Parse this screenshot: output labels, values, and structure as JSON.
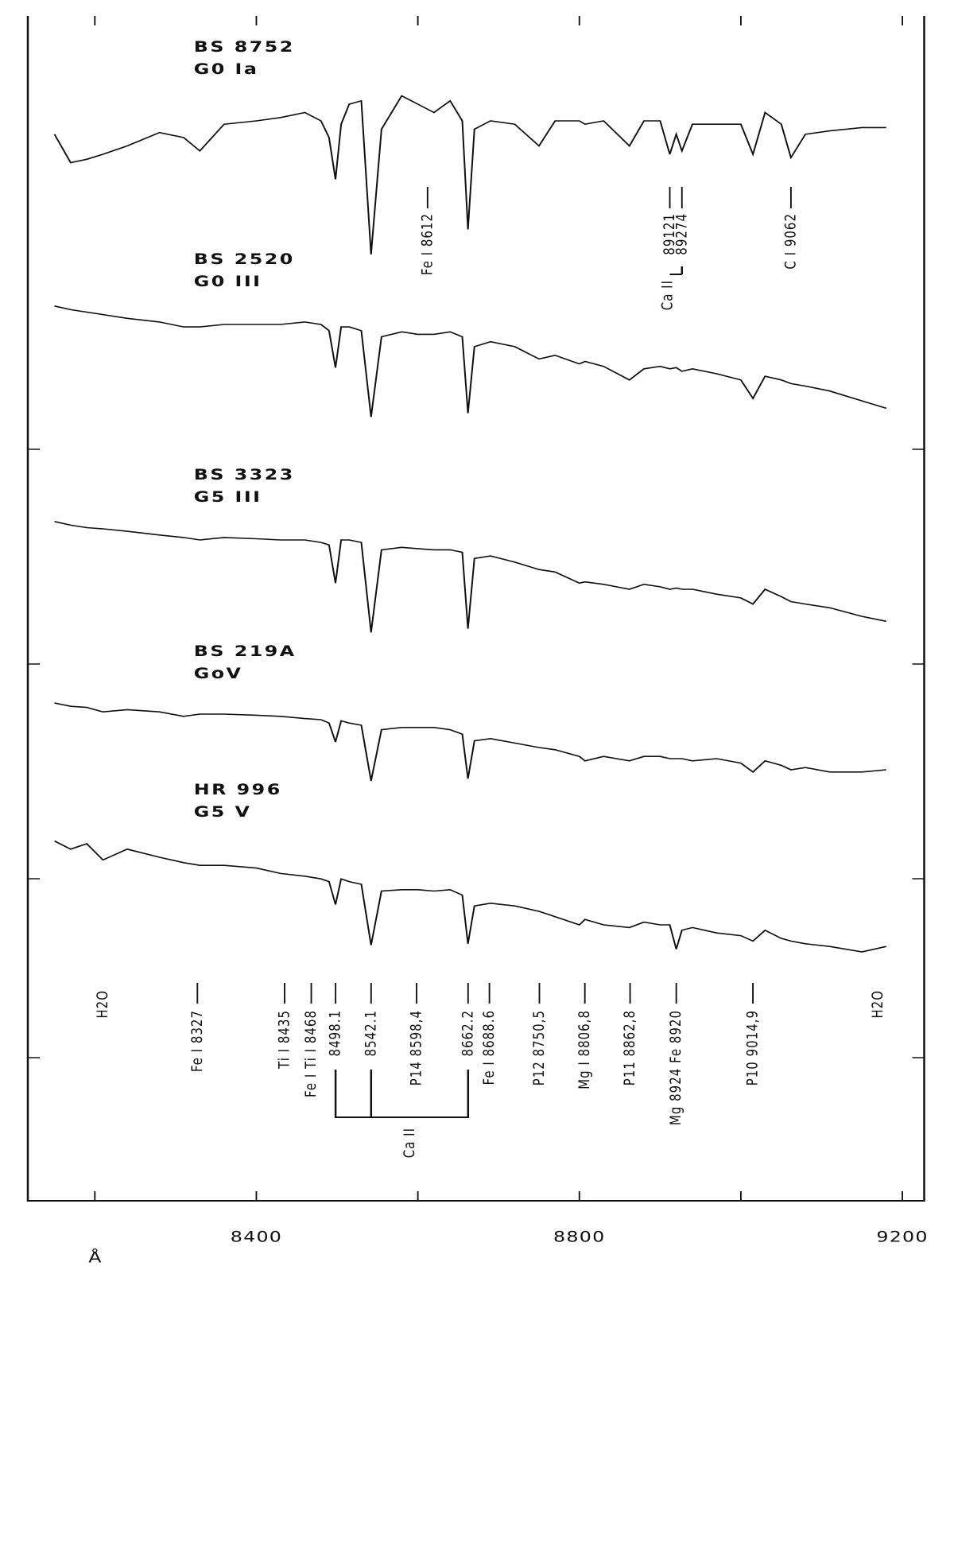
{
  "chart_data": {
    "type": "line",
    "x_label": "Å",
    "xlim": [
      8117,
      9227
    ],
    "xticks": [
      8400,
      8800,
      9200
    ],
    "xminor_ticks": [
      8200,
      8600,
      9000
    ],
    "x": [
      8150,
      8170,
      8190,
      8210,
      8240,
      8280,
      8310,
      8330,
      8360,
      8400,
      8430,
      8460,
      8480,
      8490,
      8498,
      8505,
      8515,
      8530,
      8542,
      8555,
      8580,
      8600,
      8620,
      8640,
      8655,
      8662,
      8670,
      8690,
      8720,
      8750,
      8770,
      8800,
      8807,
      8830,
      8862,
      8880,
      8900,
      8912,
      8920,
      8927,
      8940,
      8970,
      9000,
      9015,
      9030,
      9050,
      9062,
      9080,
      9110,
      9150,
      9180
    ],
    "series": [
      {
        "name": "BS 8752",
        "spectral_type": "G0 Ia",
        "color": "#111111",
        "values": [
          72,
          55,
          57,
          60,
          65,
          73,
          70,
          62,
          78,
          80,
          82,
          85,
          80,
          70,
          45,
          78,
          90,
          92,
          0,
          75,
          95,
          90,
          85,
          92,
          80,
          15,
          75,
          80,
          78,
          65,
          80,
          80,
          78,
          80,
          65,
          80,
          80,
          60,
          72,
          62,
          78,
          78,
          78,
          60,
          85,
          78,
          58,
          72,
          74,
          76,
          76
        ]
      },
      {
        "name": "BS 2520",
        "spectral_type": "G0 III",
        "color": "#111111",
        "values": [
          95,
          92,
          90,
          88,
          85,
          82,
          78,
          78,
          80,
          80,
          80,
          82,
          80,
          75,
          45,
          78,
          78,
          75,
          5,
          70,
          74,
          72,
          72,
          74,
          70,
          8,
          62,
          66,
          62,
          52,
          55,
          48,
          50,
          46,
          35,
          44,
          46,
          44,
          45,
          42,
          44,
          40,
          35,
          20,
          38,
          35,
          32,
          30,
          26,
          18,
          12
        ]
      },
      {
        "name": "BS 3323",
        "spectral_type": "G5 III",
        "color": "#111111",
        "values": [
          95,
          92,
          90,
          89,
          87,
          84,
          82,
          80,
          82,
          81,
          80,
          80,
          78,
          76,
          45,
          80,
          80,
          78,
          5,
          72,
          74,
          73,
          72,
          72,
          70,
          8,
          65,
          67,
          62,
          56,
          54,
          45,
          46,
          44,
          40,
          44,
          42,
          40,
          41,
          40,
          40,
          36,
          33,
          28,
          40,
          34,
          30,
          28,
          25,
          18,
          14
        ]
      },
      {
        "name": "BS 219A",
        "spectral_type": "GoV",
        "color": "#111111",
        "values": [
          90,
          87,
          86,
          82,
          84,
          82,
          78,
          80,
          80,
          79,
          78,
          76,
          75,
          72,
          55,
          74,
          72,
          70,
          20,
          66,
          68,
          68,
          68,
          66,
          62,
          22,
          56,
          58,
          54,
          50,
          48,
          42,
          38,
          42,
          38,
          42,
          42,
          40,
          40,
          40,
          38,
          40,
          36,
          28,
          38,
          34,
          30,
          32,
          28,
          28,
          30
        ]
      },
      {
        "name": "HR 996",
        "spectral_type": "G5 V",
        "color": "#111111",
        "values": [
          92,
          86,
          90,
          78,
          86,
          80,
          76,
          74,
          74,
          72,
          68,
          66,
          64,
          62,
          45,
          64,
          62,
          60,
          15,
          55,
          56,
          56,
          55,
          56,
          52,
          16,
          44,
          46,
          44,
          40,
          36,
          30,
          34,
          30,
          28,
          32,
          30,
          30,
          12,
          26,
          28,
          24,
          22,
          18,
          26,
          20,
          18,
          16,
          14,
          10,
          14
        ]
      }
    ],
    "top_annotations": [
      {
        "label": "Fe I 8612",
        "x": 8612
      },
      {
        "label": "89121",
        "x": 8912
      },
      {
        "label": "89274",
        "x": 8927
      },
      {
        "label": "C I 9062",
        "x": 9062
      }
    ],
    "top_bracket": {
      "label": "Ca II",
      "x": [
        8912,
        8927
      ]
    },
    "annotations": [
      {
        "label": "H2O",
        "x": 8210,
        "marker": false
      },
      {
        "label": "Fe I 8327",
        "x": 8327,
        "marker": true
      },
      {
        "label": "Ti I 8435",
        "x": 8435,
        "marker": true
      },
      {
        "label": "Fe I Ti I 8468",
        "x": 8468,
        "marker": true
      },
      {
        "label": "8498.1",
        "x": 8498.1,
        "marker": true
      },
      {
        "label": "8542.1",
        "x": 8542.1,
        "marker": true
      },
      {
        "label": "P14 8598,4",
        "x": 8598.4,
        "marker": true
      },
      {
        "label": "8662.2",
        "x": 8662.2,
        "marker": true
      },
      {
        "label": "Fe I 8688.6",
        "x": 8688.6,
        "marker": true
      },
      {
        "label": "P12 8750,5",
        "x": 8750.5,
        "marker": true
      },
      {
        "label": "Mg I 8806,8",
        "x": 8806.8,
        "marker": true
      },
      {
        "label": "P11 8862,8",
        "x": 8862.8,
        "marker": true
      },
      {
        "label": "Mg 8924 Fe 8920",
        "x": 8920,
        "marker": true
      },
      {
        "label": "P10 9014,9",
        "x": 9014.9,
        "marker": true
      },
      {
        "label": "H2O",
        "x": 9170,
        "marker": false
      }
    ],
    "bottom_bracket": {
      "label": "Ca II",
      "x": [
        8498.1,
        8542.1,
        8662.2
      ]
    }
  }
}
